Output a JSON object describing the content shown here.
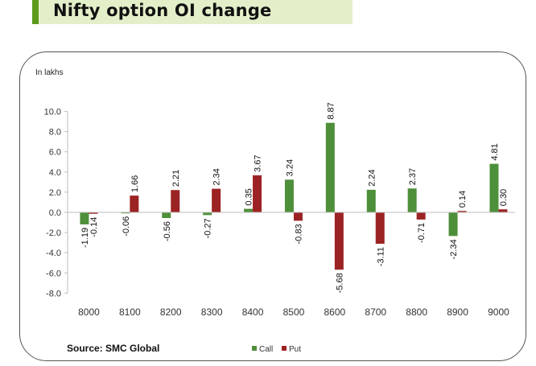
{
  "header": {
    "title": "Nifty option OI change"
  },
  "source": "Source: SMC Global",
  "chart_data": {
    "type": "bar",
    "unit_label": "In lakhs",
    "categories": [
      "8000",
      "8100",
      "8200",
      "8300",
      "8400",
      "8500",
      "8600",
      "8700",
      "8800",
      "8900",
      "9000"
    ],
    "series": [
      {
        "name": "Call",
        "color": "#4e8f3a",
        "values": [
          -1.19,
          -0.06,
          -0.56,
          -0.27,
          0.35,
          3.24,
          8.87,
          2.24,
          2.37,
          -2.34,
          4.81
        ]
      },
      {
        "name": "Put",
        "color": "#9c2323",
        "values": [
          -0.14,
          1.66,
          2.21,
          2.34,
          3.67,
          -0.83,
          -5.68,
          -3.11,
          -0.71,
          0.14,
          0.3
        ]
      }
    ],
    "data_labels": [
      [
        "-1.19",
        "-0.06",
        "-0.56",
        "-0.27",
        "0.35",
        "3.24",
        "8.87",
        "2.24",
        "2.37",
        "-2.34",
        "4.81"
      ],
      [
        "-0.14",
        "1.66",
        "2.21",
        "2.34",
        "3.67",
        "-0.83",
        "-5.68",
        "-3.11",
        "-0.71",
        "0.14",
        "0.30"
      ]
    ],
    "yticks": [
      "10.0",
      "8.0",
      "6.0",
      "4.0",
      "2.0",
      "0.0",
      "-2.0",
      "-4.0",
      "-6.0",
      "-8.0"
    ],
    "ylim": [
      -8,
      10
    ],
    "grid": false,
    "legend_position": "bottom"
  }
}
